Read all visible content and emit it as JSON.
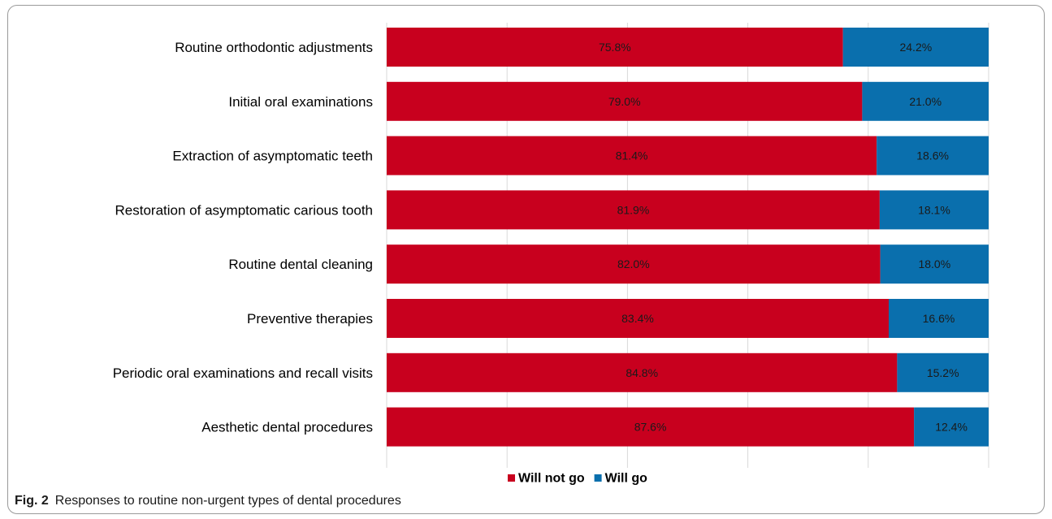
{
  "chart_data": {
    "type": "bar",
    "orientation": "horizontal",
    "stacked": true,
    "percent_stacked": true,
    "categories": [
      "Routine orthodontic adjustments",
      "Initial oral examinations",
      "Extraction of asymptomatic teeth",
      "Restoration of asymptomatic carious tooth",
      "Routine dental cleaning",
      "Preventive therapies",
      "Periodic oral examinations and recall visits",
      "Aesthetic dental procedures"
    ],
    "series": [
      {
        "name": "Will not go",
        "color": "#c8001e",
        "values": [
          75.8,
          79.0,
          81.4,
          81.9,
          82.0,
          83.4,
          84.8,
          87.6
        ],
        "labels": [
          "75.8%",
          "79.0%",
          "81.4%",
          "81.9%",
          "82.0%",
          "83.4%",
          "84.8%",
          "87.6%"
        ]
      },
      {
        "name": "Will go",
        "color": "#0a6fad",
        "values": [
          24.2,
          21.0,
          18.6,
          18.1,
          18.0,
          16.6,
          15.2,
          12.4
        ],
        "labels": [
          "24.2%",
          "21.0%",
          "18.6%",
          "18.1%",
          "18.0%",
          "16.6%",
          "15.2%",
          "12.4%"
        ]
      }
    ],
    "xlim": [
      0,
      100
    ],
    "grid": true,
    "legend": "bottom-center",
    "title": "",
    "xlabel": "",
    "ylabel": ""
  },
  "caption": {
    "figure_label": "Fig. 2",
    "text": "Responses to routine non-urgent types of dental procedures"
  }
}
